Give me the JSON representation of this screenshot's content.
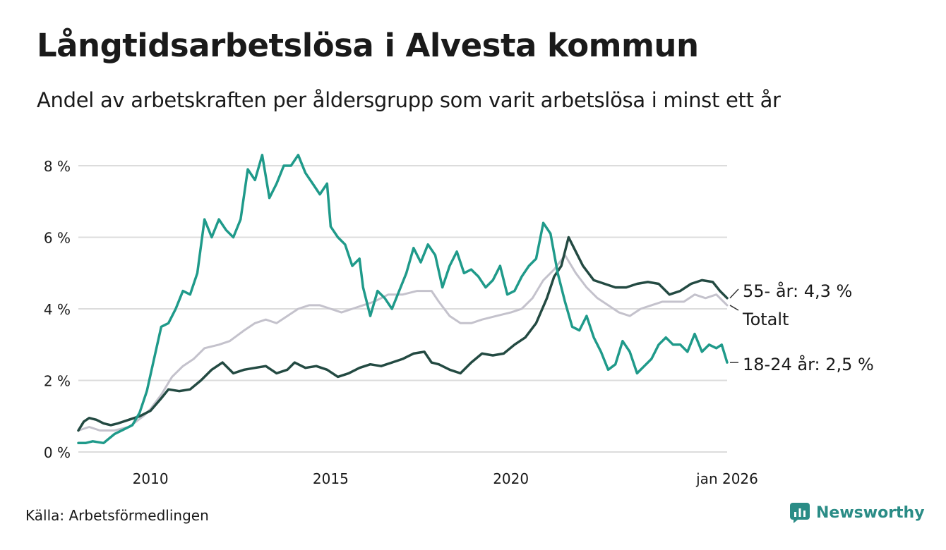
{
  "title": "Långtidsarbetslösa i Alvesta kommun",
  "subtitle": "Andel av arbetskraften per åldersgrupp som varit arbetslösa i minst ett år",
  "source": "Källa: Arbetsförmedlingen",
  "brand": {
    "name": "Newsworthy",
    "icon": "newsworthy-logo-icon",
    "color": "#2a8c86"
  },
  "chart_data": {
    "type": "line",
    "title": "Långtidsarbetslösa i Alvesta kommun",
    "xlabel": "",
    "ylabel": "",
    "xlim": [
      2008.0,
      2026.0
    ],
    "ylim": [
      0,
      8.5
    ],
    "yticks": [
      0,
      2,
      4,
      6,
      8
    ],
    "ytick_labels": [
      "0 %",
      "2 %",
      "4 %",
      "6 %",
      "8 %"
    ],
    "xticks": [
      2010,
      2015,
      2020,
      2026.0
    ],
    "xtick_labels": [
      "2010",
      "2015",
      "2020",
      "jan 2026"
    ],
    "grid": "horizontal",
    "series": [
      {
        "name": "Totalt",
        "label": "Totalt",
        "color": "#c4c2cc",
        "points": [
          [
            2008.0,
            0.6
          ],
          [
            2008.3,
            0.7
          ],
          [
            2008.6,
            0.6
          ],
          [
            2009.0,
            0.6
          ],
          [
            2009.4,
            0.7
          ],
          [
            2009.8,
            1.0
          ],
          [
            2010.0,
            1.2
          ],
          [
            2010.3,
            1.6
          ],
          [
            2010.6,
            2.1
          ],
          [
            2010.9,
            2.4
          ],
          [
            2011.2,
            2.6
          ],
          [
            2011.5,
            2.9
          ],
          [
            2011.9,
            3.0
          ],
          [
            2012.2,
            3.1
          ],
          [
            2012.6,
            3.4
          ],
          [
            2012.9,
            3.6
          ],
          [
            2013.2,
            3.7
          ],
          [
            2013.5,
            3.6
          ],
          [
            2013.8,
            3.8
          ],
          [
            2014.1,
            4.0
          ],
          [
            2014.4,
            4.1
          ],
          [
            2014.7,
            4.1
          ],
          [
            2015.0,
            4.0
          ],
          [
            2015.3,
            3.9
          ],
          [
            2015.6,
            4.0
          ],
          [
            2015.9,
            4.1
          ],
          [
            2016.2,
            4.2
          ],
          [
            2016.6,
            4.4
          ],
          [
            2017.0,
            4.4
          ],
          [
            2017.4,
            4.5
          ],
          [
            2017.8,
            4.5
          ],
          [
            2018.0,
            4.2
          ],
          [
            2018.3,
            3.8
          ],
          [
            2018.6,
            3.6
          ],
          [
            2018.9,
            3.6
          ],
          [
            2019.2,
            3.7
          ],
          [
            2019.6,
            3.8
          ],
          [
            2020.0,
            3.9
          ],
          [
            2020.3,
            4.0
          ],
          [
            2020.6,
            4.3
          ],
          [
            2020.9,
            4.8
          ],
          [
            2021.2,
            5.1
          ],
          [
            2021.5,
            5.5
          ],
          [
            2021.8,
            5.0
          ],
          [
            2022.1,
            4.6
          ],
          [
            2022.4,
            4.3
          ],
          [
            2022.7,
            4.1
          ],
          [
            2023.0,
            3.9
          ],
          [
            2023.3,
            3.8
          ],
          [
            2023.6,
            4.0
          ],
          [
            2023.9,
            4.1
          ],
          [
            2024.2,
            4.2
          ],
          [
            2024.5,
            4.2
          ],
          [
            2024.8,
            4.2
          ],
          [
            2025.1,
            4.4
          ],
          [
            2025.4,
            4.3
          ],
          [
            2025.7,
            4.4
          ],
          [
            2026.0,
            4.1
          ]
        ]
      },
      {
        "name": "55- år",
        "label": "55- år: 4,3 %",
        "last_value": 4.3,
        "color": "#234a42",
        "points": [
          [
            2008.0,
            0.6
          ],
          [
            2008.15,
            0.85
          ],
          [
            2008.3,
            0.95
          ],
          [
            2008.5,
            0.9
          ],
          [
            2008.7,
            0.8
          ],
          [
            2008.9,
            0.75
          ],
          [
            2009.1,
            0.8
          ],
          [
            2009.4,
            0.9
          ],
          [
            2009.7,
            1.0
          ],
          [
            2010.0,
            1.15
          ],
          [
            2010.3,
            1.5
          ],
          [
            2010.5,
            1.75
          ],
          [
            2010.8,
            1.7
          ],
          [
            2011.1,
            1.75
          ],
          [
            2011.4,
            2.0
          ],
          [
            2011.7,
            2.3
          ],
          [
            2012.0,
            2.5
          ],
          [
            2012.3,
            2.2
          ],
          [
            2012.6,
            2.3
          ],
          [
            2012.9,
            2.35
          ],
          [
            2013.2,
            2.4
          ],
          [
            2013.5,
            2.2
          ],
          [
            2013.8,
            2.3
          ],
          [
            2014.0,
            2.5
          ],
          [
            2014.3,
            2.35
          ],
          [
            2014.6,
            2.4
          ],
          [
            2014.9,
            2.3
          ],
          [
            2015.2,
            2.1
          ],
          [
            2015.5,
            2.2
          ],
          [
            2015.8,
            2.35
          ],
          [
            2016.1,
            2.45
          ],
          [
            2016.4,
            2.4
          ],
          [
            2016.7,
            2.5
          ],
          [
            2017.0,
            2.6
          ],
          [
            2017.3,
            2.75
          ],
          [
            2017.6,
            2.8
          ],
          [
            2017.8,
            2.5
          ],
          [
            2018.0,
            2.45
          ],
          [
            2018.3,
            2.3
          ],
          [
            2018.6,
            2.2
          ],
          [
            2018.9,
            2.5
          ],
          [
            2019.2,
            2.75
          ],
          [
            2019.5,
            2.7
          ],
          [
            2019.8,
            2.75
          ],
          [
            2020.1,
            3.0
          ],
          [
            2020.4,
            3.2
          ],
          [
            2020.7,
            3.6
          ],
          [
            2021.0,
            4.3
          ],
          [
            2021.2,
            4.9
          ],
          [
            2021.4,
            5.2
          ],
          [
            2021.6,
            6.0
          ],
          [
            2021.8,
            5.6
          ],
          [
            2022.0,
            5.2
          ],
          [
            2022.3,
            4.8
          ],
          [
            2022.6,
            4.7
          ],
          [
            2022.9,
            4.6
          ],
          [
            2023.2,
            4.6
          ],
          [
            2023.5,
            4.7
          ],
          [
            2023.8,
            4.75
          ],
          [
            2024.1,
            4.7
          ],
          [
            2024.4,
            4.4
          ],
          [
            2024.7,
            4.5
          ],
          [
            2025.0,
            4.7
          ],
          [
            2025.3,
            4.8
          ],
          [
            2025.6,
            4.75
          ],
          [
            2025.8,
            4.5
          ],
          [
            2026.0,
            4.3
          ]
        ]
      },
      {
        "name": "18-24 år",
        "label": "18-24 år: 2,5 %",
        "last_value": 2.5,
        "color": "#1f9a8a",
        "points": [
          [
            2008.0,
            0.25
          ],
          [
            2008.2,
            0.25
          ],
          [
            2008.4,
            0.3
          ],
          [
            2008.7,
            0.25
          ],
          [
            2009.0,
            0.5
          ],
          [
            2009.2,
            0.6
          ],
          [
            2009.5,
            0.75
          ],
          [
            2009.7,
            1.1
          ],
          [
            2009.9,
            1.7
          ],
          [
            2010.1,
            2.6
          ],
          [
            2010.3,
            3.5
          ],
          [
            2010.5,
            3.6
          ],
          [
            2010.7,
            4.0
          ],
          [
            2010.9,
            4.5
          ],
          [
            2011.1,
            4.4
          ],
          [
            2011.3,
            5.0
          ],
          [
            2011.5,
            6.5
          ],
          [
            2011.7,
            6.0
          ],
          [
            2011.9,
            6.5
          ],
          [
            2012.1,
            6.2
          ],
          [
            2012.3,
            6.0
          ],
          [
            2012.5,
            6.5
          ],
          [
            2012.7,
            7.9
          ],
          [
            2012.9,
            7.6
          ],
          [
            2013.1,
            8.3
          ],
          [
            2013.3,
            7.1
          ],
          [
            2013.5,
            7.5
          ],
          [
            2013.7,
            8.0
          ],
          [
            2013.9,
            8.0
          ],
          [
            2014.1,
            8.3
          ],
          [
            2014.3,
            7.8
          ],
          [
            2014.5,
            7.5
          ],
          [
            2014.7,
            7.2
          ],
          [
            2014.9,
            7.5
          ],
          [
            2015.0,
            6.3
          ],
          [
            2015.2,
            6.0
          ],
          [
            2015.4,
            5.8
          ],
          [
            2015.6,
            5.2
          ],
          [
            2015.8,
            5.4
          ],
          [
            2015.9,
            4.6
          ],
          [
            2016.1,
            3.8
          ],
          [
            2016.3,
            4.5
          ],
          [
            2016.5,
            4.3
          ],
          [
            2016.7,
            4.0
          ],
          [
            2016.9,
            4.5
          ],
          [
            2017.1,
            5.0
          ],
          [
            2017.3,
            5.7
          ],
          [
            2017.5,
            5.3
          ],
          [
            2017.7,
            5.8
          ],
          [
            2017.9,
            5.5
          ],
          [
            2018.1,
            4.6
          ],
          [
            2018.3,
            5.2
          ],
          [
            2018.5,
            5.6
          ],
          [
            2018.7,
            5.0
          ],
          [
            2018.9,
            5.1
          ],
          [
            2019.1,
            4.9
          ],
          [
            2019.3,
            4.6
          ],
          [
            2019.5,
            4.8
          ],
          [
            2019.7,
            5.2
          ],
          [
            2019.9,
            4.4
          ],
          [
            2020.1,
            4.5
          ],
          [
            2020.3,
            4.9
          ],
          [
            2020.5,
            5.2
          ],
          [
            2020.7,
            5.4
          ],
          [
            2020.9,
            6.4
          ],
          [
            2021.1,
            6.1
          ],
          [
            2021.3,
            5.0
          ],
          [
            2021.5,
            4.2
          ],
          [
            2021.7,
            3.5
          ],
          [
            2021.9,
            3.4
          ],
          [
            2022.1,
            3.8
          ],
          [
            2022.3,
            3.2
          ],
          [
            2022.5,
            2.8
          ],
          [
            2022.7,
            2.3
          ],
          [
            2022.9,
            2.45
          ],
          [
            2023.1,
            3.1
          ],
          [
            2023.3,
            2.8
          ],
          [
            2023.5,
            2.2
          ],
          [
            2023.7,
            2.4
          ],
          [
            2023.9,
            2.6
          ],
          [
            2024.1,
            3.0
          ],
          [
            2024.3,
            3.2
          ],
          [
            2024.5,
            3.0
          ],
          [
            2024.7,
            3.0
          ],
          [
            2024.9,
            2.8
          ],
          [
            2025.1,
            3.3
          ],
          [
            2025.3,
            2.8
          ],
          [
            2025.5,
            3.0
          ],
          [
            2025.7,
            2.9
          ],
          [
            2025.85,
            3.0
          ],
          [
            2026.0,
            2.5
          ]
        ]
      }
    ]
  }
}
